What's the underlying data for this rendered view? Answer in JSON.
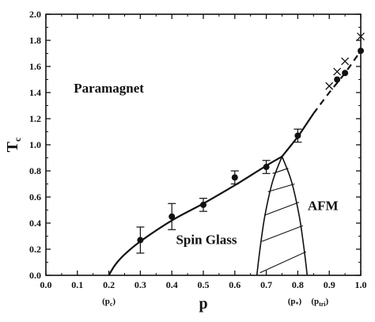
{
  "chart_data": {
    "type": "scatter",
    "xlabel": "p",
    "ylabel": "T",
    "ylabel_subscript": "c",
    "xlim": [
      0.0,
      1.0
    ],
    "ylim": [
      0.0,
      2.0
    ],
    "x_ticks": [
      "0.0",
      "0.1",
      "0.2",
      "0.3",
      "0.4",
      "0.5",
      "0.6",
      "0.7",
      "0.8",
      "0.9",
      "1.0"
    ],
    "y_ticks": [
      "0.0",
      "0.2",
      "0.4",
      "0.6",
      "0.8",
      "1.0",
      "1.2",
      "1.4",
      "1.6",
      "1.8",
      "2.0"
    ],
    "grid": false,
    "series": [
      {
        "marker": "filled-circle",
        "points": [
          {
            "x": 0.3,
            "y": 0.27,
            "err": 0.1
          },
          {
            "x": 0.4,
            "y": 0.45,
            "err": 0.1
          },
          {
            "x": 0.5,
            "y": 0.54,
            "err": 0.05
          },
          {
            "x": 0.6,
            "y": 0.75,
            "err": 0.05
          },
          {
            "x": 0.7,
            "y": 0.83,
            "err": 0.05
          },
          {
            "x": 0.8,
            "y": 1.07,
            "err": 0.05
          },
          {
            "x": 0.925,
            "y": 1.5,
            "err": 0.01
          },
          {
            "x": 0.95,
            "y": 1.55,
            "err": 0.01
          },
          {
            "x": 1.0,
            "y": 1.72,
            "err": 0.01
          }
        ]
      },
      {
        "marker": "cross",
        "points": [
          {
            "x": 0.9,
            "y": 1.45
          },
          {
            "x": 0.925,
            "y": 1.56
          },
          {
            "x": 0.95,
            "y": 1.64
          },
          {
            "x": 1.0,
            "y": 1.83
          }
        ]
      }
    ],
    "curves": {
      "spin_glass_boundary": [
        [
          0.2,
          0.0
        ],
        [
          0.22,
          0.08
        ],
        [
          0.25,
          0.16
        ],
        [
          0.3,
          0.26
        ],
        [
          0.4,
          0.42
        ],
        [
          0.5,
          0.55
        ],
        [
          0.6,
          0.69
        ],
        [
          0.7,
          0.84
        ],
        [
          0.75,
          0.91
        ]
      ],
      "ferro_solid": [
        [
          0.75,
          0.91
        ],
        [
          0.8,
          1.06
        ],
        [
          0.85,
          1.24
        ]
      ],
      "ferro_dashed": [
        [
          0.85,
          1.24
        ],
        [
          0.9,
          1.4
        ],
        [
          0.95,
          1.55
        ],
        [
          1.0,
          1.72
        ]
      ],
      "afm_left": [
        [
          0.75,
          0.91
        ],
        [
          0.72,
          0.72
        ],
        [
          0.695,
          0.45
        ],
        [
          0.68,
          0.2
        ],
        [
          0.67,
          0.0
        ]
      ],
      "afm_right": [
        [
          0.75,
          0.91
        ],
        [
          0.78,
          0.72
        ],
        [
          0.805,
          0.45
        ],
        [
          0.82,
          0.2
        ],
        [
          0.83,
          0.0
        ]
      ],
      "hatch_lines": [
        [
          [
            0.68,
            0.02
          ],
          [
            0.826,
            0.18
          ]
        ],
        [
          [
            0.686,
            0.26
          ],
          [
            0.816,
            0.38
          ]
        ],
        [
          [
            0.694,
            0.46
          ],
          [
            0.804,
            0.56
          ]
        ],
        [
          [
            0.705,
            0.64
          ],
          [
            0.79,
            0.7
          ]
        ],
        [
          [
            0.72,
            0.78
          ],
          [
            0.77,
            0.82
          ]
        ]
      ]
    },
    "region_labels": [
      {
        "text": "Paramagnet",
        "x": 0.2,
        "y": 1.4
      },
      {
        "text": "Spin Glass",
        "x": 0.51,
        "y": 0.24
      },
      {
        "text": "AFM",
        "x": 0.88,
        "y": 0.5
      }
    ],
    "x_annotations": [
      {
        "text": "(p",
        "sub": "c",
        "close": ")",
        "x": 0.2
      },
      {
        "text": "(p",
        "sub": "*",
        "close": ")",
        "x": 0.79
      },
      {
        "text": "(p",
        "sub": "tri",
        "close": ")",
        "x": 0.87
      }
    ]
  }
}
